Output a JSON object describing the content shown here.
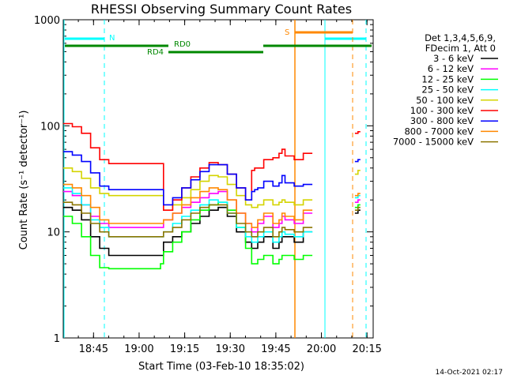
{
  "chart_data": {
    "type": "line",
    "title": "RHESSI Observing Summary Count Rates",
    "xlabel": "Start Time (03-Feb-10 18:35:02)",
    "ylabel": "Count Rate (s⁻¹ detector⁻¹)",
    "x_ticks": [
      "18:45",
      "19:00",
      "19:15",
      "19:30",
      "19:45",
      "20:00",
      "20:15"
    ],
    "y_ticks": [
      "1",
      "10",
      "100",
      "1000"
    ],
    "yscale": "log",
    "ylim": [
      1,
      1000
    ],
    "xlim": [
      "18:35:02",
      "20:17:02"
    ],
    "legend": {
      "placement": "top-right",
      "header": [
        "Det 1,3,4,5,6,9,",
        "FDecim 1, Att 0"
      ],
      "entries": [
        {
          "label": "3 - 6 keV",
          "color": "#000000"
        },
        {
          "label": "6 - 12 keV",
          "color": "#ff00ff"
        },
        {
          "label": "12 - 25 keV",
          "color": "#00ff00"
        },
        {
          "label": "25 - 50 keV",
          "color": "#00ffff"
        },
        {
          "label": "50 - 100 keV",
          "color": "#d4d400"
        },
        {
          "label": "100 - 300 keV",
          "color": "#ff0000"
        },
        {
          "label": "300 - 800 keV",
          "color": "#0000ff"
        },
        {
          "label": "800 - 7000 keV",
          "color": "#ff8800"
        },
        {
          "label": "7000 - 15000 keV",
          "color": "#8b7500"
        }
      ]
    },
    "flags": {
      "N": {
        "label": "N",
        "color": "#00ffff"
      },
      "S": {
        "label": "S",
        "color": "#ff8800"
      },
      "RD0": {
        "label": "RD0",
        "color": "#008800"
      },
      "RD4": {
        "label": "RD4",
        "color": "#008800"
      }
    },
    "x_minutes": [
      0,
      3,
      6,
      9,
      12,
      15,
      18,
      21,
      24,
      27,
      30,
      32,
      33,
      36,
      39,
      42,
      45,
      48,
      51,
      54,
      57,
      60,
      62,
      63,
      64,
      66,
      69,
      71,
      72,
      73,
      76,
      79,
      82,
      83,
      84,
      88,
      89,
      92,
      96,
      97
    ],
    "series": [
      {
        "name": "3 - 6 keV",
        "color": "#000000",
        "values": [
          17,
          16,
          13,
          9,
          7,
          6,
          6,
          6,
          6,
          6,
          6,
          6,
          8,
          9,
          10,
          12,
          14,
          16,
          17,
          14,
          10,
          8,
          7,
          7,
          8,
          9,
          7,
          8,
          9,
          9,
          8,
          10,
          null,
          null,
          null,
          null,
          null,
          null,
          15,
          16
        ]
      },
      {
        "name": "6 - 12 keV",
        "color": "#ff00ff",
        "values": [
          24,
          22,
          18,
          14,
          12,
          11,
          11,
          11,
          11,
          11,
          11,
          11,
          13,
          15,
          17,
          19,
          21,
          23,
          24,
          20,
          15,
          12,
          10,
          10,
          12,
          14,
          11,
          12,
          14,
          13,
          12,
          15,
          null,
          null,
          null,
          null,
          null,
          null,
          19,
          20
        ]
      },
      {
        "name": "12 - 25 keV",
        "color": "#00ff00",
        "values": [
          14,
          12,
          9,
          6,
          4.6,
          4.5,
          4.5,
          4.5,
          4.5,
          4.5,
          4.5,
          5,
          6.5,
          8,
          10,
          13,
          16,
          18,
          19,
          16,
          11,
          7,
          5,
          5,
          5.5,
          6,
          5,
          5.5,
          6,
          6,
          5.5,
          6,
          null,
          null,
          null,
          null,
          null,
          null,
          17,
          18
        ]
      },
      {
        "name": "25 - 50 keV",
        "color": "#00ffff",
        "values": [
          26,
          23,
          18,
          13,
          11,
          9,
          9,
          9,
          9,
          9,
          9,
          9,
          10,
          12,
          14,
          16,
          18,
          20,
          19,
          15,
          11,
          9,
          8,
          8,
          9,
          10,
          8,
          9,
          10,
          9.5,
          9,
          10,
          null,
          null,
          null,
          null,
          null,
          null,
          21,
          22
        ]
      },
      {
        "name": "50 - 100 keV",
        "color": "#d4d400",
        "values": [
          40,
          37,
          32,
          26,
          23,
          22,
          22,
          22,
          22,
          22,
          22,
          22,
          16,
          18,
          21,
          25,
          30,
          34,
          33,
          28,
          22,
          18,
          17,
          17,
          18,
          20,
          18,
          19,
          20,
          19,
          18,
          20,
          null,
          null,
          null,
          null,
          null,
          null,
          35,
          38
        ]
      },
      {
        "name": "100 - 300 keV",
        "color": "#ff0000",
        "values": [
          105,
          98,
          85,
          62,
          48,
          44,
          44,
          44,
          44,
          44,
          44,
          44,
          16,
          20,
          26,
          33,
          40,
          45,
          43,
          35,
          26,
          20,
          38,
          40,
          40,
          48,
          50,
          55,
          60,
          52,
          48,
          55,
          null,
          null,
          null,
          null,
          null,
          null,
          85,
          88
        ]
      },
      {
        "name": "300 - 800 keV",
        "color": "#0000ff",
        "values": [
          57,
          53,
          46,
          36,
          27,
          25,
          25,
          25,
          25,
          25,
          25,
          25,
          18,
          21,
          26,
          31,
          37,
          43,
          43,
          35,
          26,
          20,
          24,
          25,
          26,
          30,
          27,
          29,
          34,
          29,
          27,
          28,
          null,
          null,
          null,
          null,
          null,
          null,
          46,
          48
        ]
      },
      {
        "name": "800 - 7000 keV",
        "color": "#ff8800",
        "values": [
          28,
          26,
          22,
          17,
          13,
          12,
          12,
          12,
          12,
          12,
          12,
          12,
          13,
          15,
          18,
          21,
          24,
          26,
          25,
          20,
          15,
          12,
          11,
          11,
          13,
          15,
          12,
          13,
          15,
          14,
          13,
          16,
          null,
          null,
          null,
          null,
          null,
          null,
          22,
          23
        ]
      },
      {
        "name": "7000 - 15000 keV",
        "color": "#8b7500",
        "values": [
          19,
          18,
          15,
          12,
          10,
          9,
          9,
          9,
          9,
          9,
          9,
          9,
          10,
          11,
          13,
          15,
          17,
          18,
          18,
          15,
          12,
          10,
          9,
          9,
          10,
          11,
          9,
          10,
          11,
          10.5,
          10,
          11,
          null,
          null,
          null,
          null,
          null,
          null,
          16,
          17
        ]
      }
    ],
    "footer_date": "14-Oct-2021 02:17"
  }
}
